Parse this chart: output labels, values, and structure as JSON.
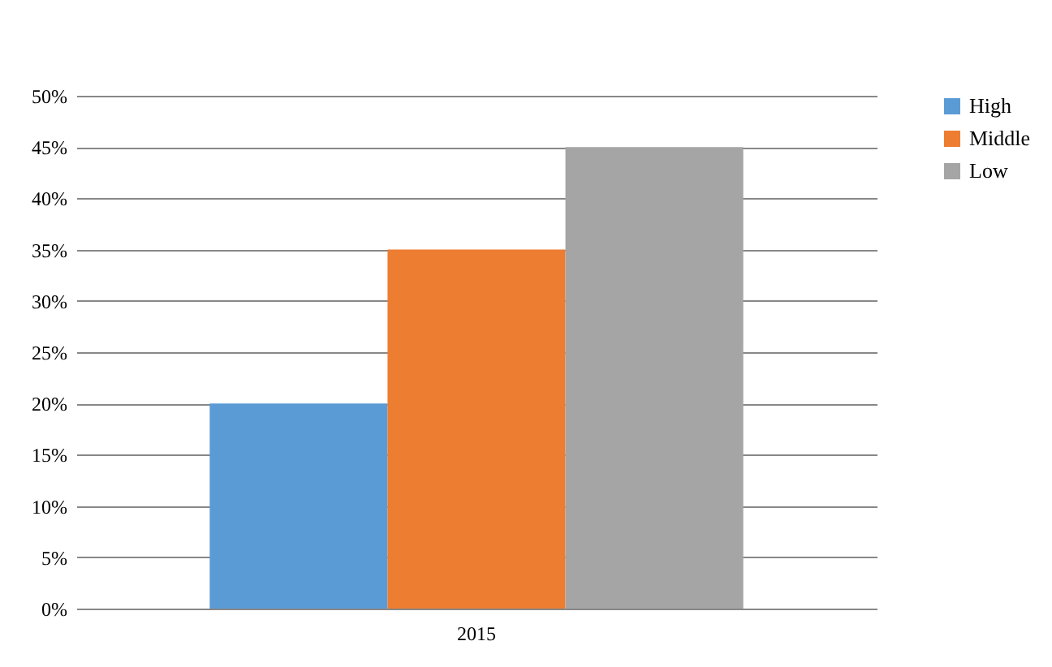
{
  "chart_data": {
    "type": "bar",
    "categories": [
      "2015"
    ],
    "series": [
      {
        "name": "High",
        "color": "#5b9bd5",
        "values": [
          20
        ]
      },
      {
        "name": "Middle",
        "color": "#ed7d31",
        "values": [
          35
        ]
      },
      {
        "name": "Low",
        "color": "#a5a5a5",
        "values": [
          45
        ]
      }
    ],
    "ylim": [
      0,
      50
    ],
    "yticks": [
      {
        "value": 0,
        "label": "0%"
      },
      {
        "value": 5,
        "label": "5%"
      },
      {
        "value": 10,
        "label": "10%"
      },
      {
        "value": 15,
        "label": "15%"
      },
      {
        "value": 20,
        "label": "20%"
      },
      {
        "value": 25,
        "label": "25%"
      },
      {
        "value": 30,
        "label": "30%"
      },
      {
        "value": 35,
        "label": "35%"
      },
      {
        "value": 40,
        "label": "40%"
      },
      {
        "value": 45,
        "label": "45%"
      },
      {
        "value": 50,
        "label": "50%"
      }
    ],
    "grid": "y",
    "legend": "right"
  }
}
